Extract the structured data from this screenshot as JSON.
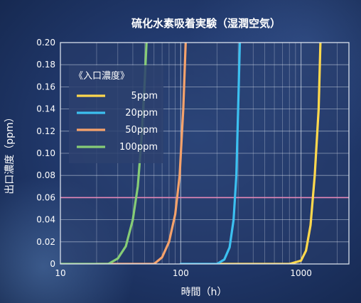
{
  "chart_data": {
    "type": "line",
    "title": "硫化水素吸着実験（湿潤空気）",
    "xlabel": "時間（h）",
    "ylabel": "出口濃度（ppm）",
    "xscale": "log",
    "xlim": [
      10,
      2500
    ],
    "ylim": [
      0,
      0.2
    ],
    "xticks": [
      10,
      100,
      1000
    ],
    "xtick_labels": [
      "10",
      "100",
      "1000"
    ],
    "yticks": [
      0,
      0.02,
      0.04,
      0.06,
      0.08,
      0.1,
      0.12,
      0.14,
      0.16,
      0.18,
      0.2
    ],
    "ytick_labels": [
      "0",
      "0.02",
      "0.04",
      "0.06",
      "0.08",
      "0.10",
      "0.12",
      "0.14",
      "0.16",
      "0.18",
      "0.20"
    ],
    "grid": true,
    "legend": {
      "title": "《入口濃度》",
      "position": "top-left"
    },
    "reference_line": {
      "y": 0.06,
      "color": "#e889b9"
    },
    "series": [
      {
        "name": "5ppm",
        "color": "#ffd84d",
        "points": [
          [
            200,
            0
          ],
          [
            800,
            0
          ],
          [
            1000,
            0.003
          ],
          [
            1100,
            0.012
          ],
          [
            1200,
            0.035
          ],
          [
            1300,
            0.08
          ],
          [
            1400,
            0.14
          ],
          [
            1450,
            0.2
          ]
        ]
      },
      {
        "name": "20ppm",
        "color": "#3cc0f0",
        "points": [
          [
            100,
            0
          ],
          [
            200,
            0
          ],
          [
            230,
            0.004
          ],
          [
            255,
            0.015
          ],
          [
            275,
            0.04
          ],
          [
            290,
            0.08
          ],
          [
            300,
            0.14
          ],
          [
            310,
            0.2
          ]
        ]
      },
      {
        "name": "50ppm",
        "color": "#f5a26b",
        "points": [
          [
            20,
            0
          ],
          [
            60,
            0
          ],
          [
            70,
            0.006
          ],
          [
            80,
            0.02
          ],
          [
            90,
            0.045
          ],
          [
            98,
            0.08
          ],
          [
            105,
            0.14
          ],
          [
            110,
            0.2
          ]
        ]
      },
      {
        "name": "100ppm",
        "color": "#86cc76",
        "points": [
          [
            10,
            0
          ],
          [
            25,
            0
          ],
          [
            30,
            0.005
          ],
          [
            35,
            0.016
          ],
          [
            40,
            0.04
          ],
          [
            44,
            0.07
          ],
          [
            47,
            0.11
          ],
          [
            50,
            0.16
          ],
          [
            52,
            0.2
          ]
        ]
      }
    ]
  }
}
